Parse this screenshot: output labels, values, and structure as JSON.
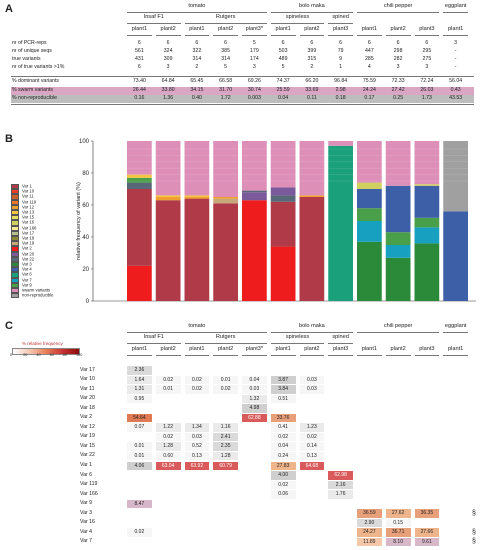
{
  "panel_letters": {
    "a": "A",
    "b": "B",
    "c": "C"
  },
  "species": [
    {
      "label": "tomato",
      "x": 0
    },
    {
      "label": "bolo maka",
      "x": 0
    },
    {
      "label": "chili pepper",
      "x": 0
    },
    {
      "label": "eggplant",
      "x": 0
    }
  ],
  "subgroups": [
    "Insaf F1",
    "Rutgers",
    "spineless",
    "spined"
  ],
  "plants": [
    "plant1",
    "plant2",
    "plant1",
    "plant2",
    "plant3*",
    "plant1",
    "plant2",
    "plant3",
    "plant1",
    "plant2",
    "plant3",
    "plant1"
  ],
  "table_a": {
    "rows": [
      {
        "label": "nr of PCR-reps",
        "values": [
          "6",
          "6",
          "6",
          "6",
          "5",
          "6",
          "6",
          "6",
          "6",
          "6",
          "6",
          "3"
        ]
      },
      {
        "label": "nr of unique seqs",
        "values": [
          "561",
          "324",
          "322",
          "385",
          "179",
          "503",
          "399",
          "79",
          "447",
          "298",
          "295",
          "-"
        ]
      },
      {
        "label": "true variants",
        "values": [
          "431",
          "309",
          "314",
          "314",
          "174",
          "489",
          "315",
          "9",
          "285",
          "282",
          "275",
          "-"
        ]
      },
      {
        "label": "nr of true variants >1%",
        "values": [
          "6",
          "3",
          "2",
          "5",
          "3",
          "5",
          "2",
          "1",
          "4",
          "3",
          "3",
          "-"
        ]
      },
      {
        "label": "% dominant variants",
        "values": [
          "73.40",
          "64.84",
          "65.45",
          "66.58",
          "69.26",
          "74.37",
          "66.20",
          "96.84",
          "75.59",
          "72.33",
          "72.24",
          "56.04"
        ]
      },
      {
        "label": "% swarm variants",
        "values": [
          "26.44",
          "33.80",
          "34.15",
          "31.70",
          "30.74",
          "25.59",
          "33.69",
          "2.98",
          "24.24",
          "27.42",
          "26.03",
          "0.43"
        ]
      },
      {
        "label": "% non-reproducible",
        "values": [
          "0.16",
          "1.36",
          "0.40",
          "1.72",
          "0.003",
          "0.04",
          "0.11",
          "0.18",
          "0.17",
          "0.25",
          "1.73",
          "43.53"
        ]
      }
    ]
  },
  "chart_data": {
    "type": "bar",
    "stacked": true,
    "ylabel": "relative frequency of variant (%)",
    "ylim": [
      0,
      100
    ],
    "yticks": [
      "0",
      "20",
      "40",
      "60",
      "80",
      "100"
    ],
    "legend": [
      {
        "name": "Var 1",
        "color": "#b03a48"
      },
      {
        "name": "Var 10",
        "color": "#e8402a"
      },
      {
        "name": "Var 11",
        "color": "#c95f2e"
      },
      {
        "name": "Var 119",
        "color": "#f07828"
      },
      {
        "name": "Var 12",
        "color": "#f0a030"
      },
      {
        "name": "Var 13",
        "color": "#f5c542"
      },
      {
        "name": "Var 15",
        "color": "#e8e060"
      },
      {
        "name": "Var 16",
        "color": "#d0d060"
      },
      {
        "name": "Var 166",
        "color": "#f5e89a"
      },
      {
        "name": "Var 17",
        "color": "#b8c090"
      },
      {
        "name": "Var 18",
        "color": "#8a8a30"
      },
      {
        "name": "Var 19",
        "color": "#c8a87a"
      },
      {
        "name": "Var 2",
        "color": "#ee1c1c"
      },
      {
        "name": "Var 20",
        "color": "#7a5a9a"
      },
      {
        "name": "Var 22",
        "color": "#586878"
      },
      {
        "name": "Var 3",
        "color": "#2a8a3a"
      },
      {
        "name": "Var 4",
        "color": "#3d5fa8"
      },
      {
        "name": "Var 6",
        "color": "#1aa07a"
      },
      {
        "name": "Var 7",
        "color": "#18a0c0"
      },
      {
        "name": "Var 9",
        "color": "#4aa04a"
      },
      {
        "name": "swarm variants",
        "color": "#dd8fb8"
      },
      {
        "name": "non-reproducible",
        "color": "#a0a0a0"
      }
    ],
    "samples": [
      "tomato Insaf F1 plant1",
      "tomato Insaf F1 plant2",
      "tomato Rutgers plant1",
      "tomato Rutgers plant2",
      "tomato Rutgers plant3*",
      "bolo maka spineless plant1",
      "bolo maka spineless plant2",
      "bolo maka spined plant3",
      "chili pepper plant1",
      "chili pepper plant2",
      "chili pepper plant3",
      "eggplant plant1"
    ],
    "composition": [
      [
        {
          "v": "Var 2",
          "p": 22
        },
        {
          "v": "Var 1",
          "p": 48
        },
        {
          "v": "Var 22",
          "p": 4
        },
        {
          "v": "Var 9",
          "p": 3
        },
        {
          "v": "Var 13",
          "p": 2
        },
        {
          "v": "swarm variants",
          "p": 21
        }
      ],
      [
        {
          "v": "Var 1",
          "p": 63
        },
        {
          "v": "Var 12",
          "p": 2
        },
        {
          "v": "Var 13",
          "p": 1
        },
        {
          "v": "swarm variants",
          "p": 34
        }
      ],
      [
        {
          "v": "Var 1",
          "p": 64
        },
        {
          "v": "Var 12",
          "p": 1
        },
        {
          "v": "Var 13",
          "p": 1
        },
        {
          "v": "swarm variants",
          "p": 34
        }
      ],
      [
        {
          "v": "Var 1",
          "p": 61
        },
        {
          "v": "Var 19",
          "p": 3
        },
        {
          "v": "Var 12",
          "p": 1
        },
        {
          "v": "swarm variants",
          "p": 35
        }
      ],
      [
        {
          "v": "Var 2",
          "p": 63
        },
        {
          "v": "Var 20",
          "p": 5
        },
        {
          "v": "Var 22",
          "p": 1
        },
        {
          "v": "swarm variants",
          "p": 31
        }
      ],
      [
        {
          "v": "Var 2",
          "p": 34
        },
        {
          "v": "Var 1",
          "p": 28
        },
        {
          "v": "Var 22",
          "p": 4
        },
        {
          "v": "Var 20",
          "p": 5
        },
        {
          "v": "swarm variants",
          "p": 29
        }
      ],
      [
        {
          "v": "Var 1",
          "p": 65
        },
        {
          "v": "Var 12",
          "p": 1
        },
        {
          "v": "swarm variants",
          "p": 34
        }
      ],
      [
        {
          "v": "Var 6",
          "p": 97
        },
        {
          "v": "swarm variants",
          "p": 3
        }
      ],
      [
        {
          "v": "Var 3",
          "p": 37
        },
        {
          "v": "Var 7",
          "p": 13
        },
        {
          "v": "Var 9",
          "p": 8
        },
        {
          "v": "Var 4",
          "p": 12
        },
        {
          "v": "Var 16",
          "p": 4
        },
        {
          "v": "swarm variants",
          "p": 26
        }
      ],
      [
        {
          "v": "Var 3",
          "p": 27
        },
        {
          "v": "Var 7",
          "p": 8
        },
        {
          "v": "Var 9",
          "p": 8
        },
        {
          "v": "Var 4",
          "p": 29
        },
        {
          "v": "swarm variants",
          "p": 28
        }
      ],
      [
        {
          "v": "Var 3",
          "p": 36
        },
        {
          "v": "Var 7",
          "p": 10
        },
        {
          "v": "Var 9",
          "p": 6
        },
        {
          "v": "Var 4",
          "p": 20
        },
        {
          "v": "Var 16",
          "p": 1
        },
        {
          "v": "swarm variants",
          "p": 27
        }
      ],
      [
        {
          "v": "Var 4",
          "p": 56
        },
        {
          "v": "non-reproducible",
          "p": 44
        }
      ]
    ]
  },
  "heatmap": {
    "legend_title": "% relative frequency",
    "legend_ticks": [
      "0",
      "20",
      "40",
      "60",
      "80",
      "100"
    ],
    "rows": [
      {
        "label": "Var 17",
        "values": [
          "2.36",
          "",
          "",
          "",
          "",
          "",
          "",
          "",
          "",
          "",
          "",
          ""
        ]
      },
      {
        "label": "Var 10",
        "values": [
          "1.64",
          "0.02",
          "0.02",
          "0.01",
          "0.04",
          "3.87",
          "0.03",
          "",
          "",
          "",
          "",
          ""
        ]
      },
      {
        "label": "Var 11",
        "values": [
          "1.31",
          "0.01",
          "0.02",
          "0.02",
          "0.03",
          "3.84",
          "0.03",
          "",
          "",
          "",
          "",
          ""
        ]
      },
      {
        "label": "Var 20",
        "values": [
          "0.95",
          "",
          "",
          "",
          "1.32",
          "0.51",
          "",
          "",
          "",
          "",
          "",
          ""
        ]
      },
      {
        "label": "Var 18",
        "values": [
          "",
          "",
          "",
          "",
          "4.98",
          "",
          "",
          "",
          "",
          "",
          "",
          ""
        ]
      },
      {
        "label": "Var 2",
        "values": [
          "54.64",
          "",
          "",
          "",
          "62.88",
          "33.76",
          "",
          "",
          "",
          "",
          "",
          ""
        ]
      },
      {
        "label": "Var 12",
        "values": [
          "0.07",
          "1.22",
          "1.34",
          "1.16",
          "",
          "0.41",
          "1.23",
          "",
          "",
          "",
          "",
          ""
        ]
      },
      {
        "label": "Var 19",
        "values": [
          "",
          "0.02",
          "0.03",
          "2.41",
          "",
          "0.02",
          "0.02",
          "",
          "",
          "",
          "",
          ""
        ]
      },
      {
        "label": "Var 15",
        "values": [
          "0.01",
          "1.28",
          "0.52",
          "2.35",
          "",
          "0.04",
          "0.14",
          "",
          "",
          "",
          "",
          ""
        ]
      },
      {
        "label": "Var 22",
        "values": [
          "0.01",
          "0.60",
          "0.13",
          "1.28",
          "",
          "0.24",
          "0.13",
          "",
          "",
          "",
          "",
          ""
        ]
      },
      {
        "label": "Var 1",
        "values": [
          "4.06",
          "63.04",
          "63.92",
          "60.79",
          "",
          "27.83",
          "64.68",
          "",
          "",
          "",
          "",
          ""
        ]
      },
      {
        "label": "Var 6",
        "values": [
          "",
          "",
          "",
          "",
          "",
          "4.00",
          "",
          "62.98",
          "",
          "",
          "",
          ""
        ]
      },
      {
        "label": "Var 119",
        "values": [
          "",
          "",
          "",
          "",
          "",
          "0.02",
          "",
          "2.16",
          "",
          "",
          "",
          ""
        ]
      },
      {
        "label": "Var 166",
        "values": [
          "",
          "",
          "",
          "",
          "",
          "0.06",
          "",
          "1.76",
          "",
          "",
          "",
          ""
        ]
      },
      {
        "label": "Var 9",
        "values": [
          "8.47",
          "",
          "",
          "",
          "",
          "",
          "",
          "",
          "",
          "",
          "",
          ""
        ]
      },
      {
        "label": "Var 3",
        "values": [
          "",
          "",
          "",
          "",
          "",
          "",
          "",
          "",
          "36.59",
          "27.62",
          "36.35",
          ""
        ]
      },
      {
        "label": "Var 16",
        "values": [
          "",
          "",
          "",
          "",
          "",
          "",
          "",
          "",
          "2.90",
          "0.15",
          "",
          ""
        ]
      },
      {
        "label": "Var 4",
        "values": [
          "0.02",
          "",
          "",
          "",
          "",
          "",
          "",
          "",
          "24.27",
          "36.71",
          "27.66",
          ""
        ]
      },
      {
        "label": "Var 7",
        "values": [
          "",
          "",
          "",
          "",
          "",
          "",
          "",
          "",
          "11.89",
          "8.10",
          "9.61",
          ""
        ]
      }
    ],
    "markers": [
      "§",
      "§",
      "§"
    ]
  }
}
